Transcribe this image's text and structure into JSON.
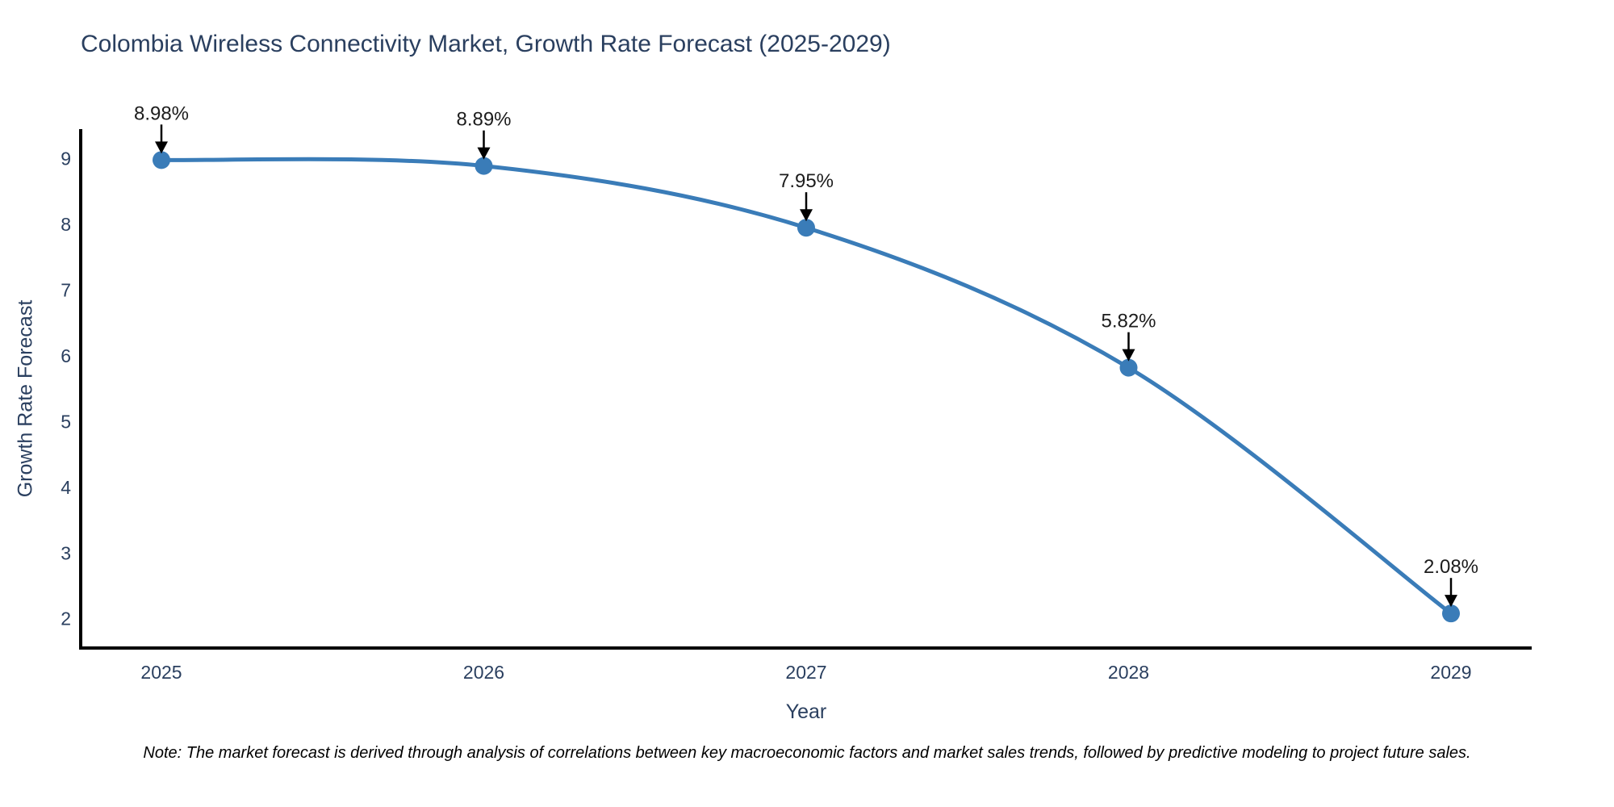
{
  "page": {
    "background": "#ffffff"
  },
  "chart_data": {
    "type": "line",
    "title": "Colombia Wireless Connectivity Market, Growth Rate Forecast (2025-2029)",
    "xlabel": "Year",
    "ylabel": "Growth Rate Forecast",
    "categories": [
      "2025",
      "2026",
      "2027",
      "2028",
      "2029"
    ],
    "series": [
      {
        "name": "Growth Rate Forecast",
        "values": [
          8.98,
          8.89,
          7.95,
          5.82,
          2.08
        ]
      }
    ],
    "point_labels": [
      "8.98%",
      "8.89%",
      "7.95%",
      "5.82%",
      "2.08%"
    ],
    "yticks": [
      2,
      3,
      4,
      5,
      6,
      7,
      8,
      9
    ],
    "ylim": [
      1.72,
      9.45
    ],
    "line_shape": "spline",
    "markers": true,
    "grid": false,
    "legend_position": "none",
    "annotations": "value labels with downward arrows above each point",
    "colors": {
      "line": "#3a7cb8",
      "marker": "#3a7cb8",
      "axis_line": "#000000",
      "arrow": "#000000",
      "title_text": "#2a3f5f",
      "axis_title_text": "#2a3f5f",
      "tick_text": "#2a3f5f",
      "point_label_text": "#1c1c1c"
    }
  },
  "note": {
    "text": "Note: The market forecast is derived through analysis of correlations between key macroeconomic factors and market sales trends, followed by predictive modeling to project future sales."
  }
}
